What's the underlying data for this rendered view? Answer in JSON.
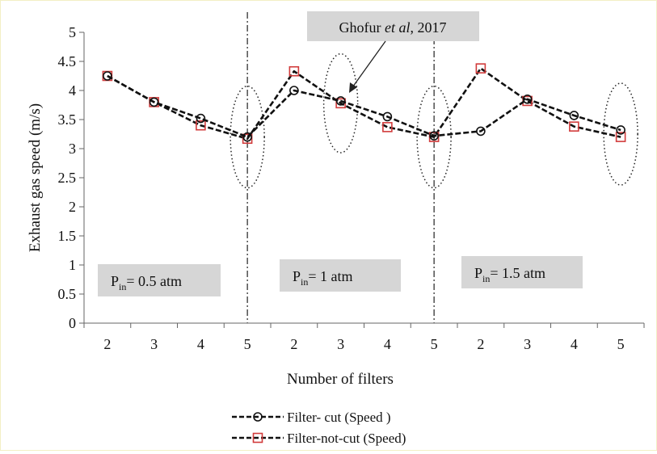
{
  "chart_data": {
    "type": "line",
    "title": "",
    "xlabel": "Number of filters",
    "ylabel": "Exhaust gas speed (m/s)",
    "ylim": [
      0,
      5
    ],
    "yticks": [
      "0",
      "0.5",
      "1",
      "1.5",
      "2",
      "2.5",
      "3",
      "3.5",
      "4",
      "4.5",
      "5"
    ],
    "categories": [
      "2",
      "3",
      "4",
      "5",
      "2",
      "3",
      "4",
      "5",
      "2",
      "3",
      "4",
      "5"
    ],
    "series": [
      {
        "name": "Filter- cut (Speed )",
        "marker": "circle",
        "color": "#111111",
        "values": [
          4.25,
          3.8,
          3.52,
          3.2,
          4.0,
          3.82,
          3.55,
          3.22,
          3.3,
          3.85,
          3.57,
          3.32
        ]
      },
      {
        "name": "Filter-not-cut (Speed)",
        "marker": "square",
        "color": "#111111",
        "marker_color": "#d13b3b",
        "values": [
          4.25,
          3.8,
          3.4,
          3.17,
          4.33,
          3.78,
          3.37,
          3.2,
          4.38,
          3.82,
          3.38,
          3.2
        ]
      }
    ],
    "region_boxes": [
      {
        "main": "P",
        "sub": "in",
        "rest": "= 0.5 atm"
      },
      {
        "main": "P",
        "sub": "in",
        "rest": "= 1 atm"
      },
      {
        "main": "P",
        "sub": "in",
        "rest": "= 1.5 atm"
      }
    ],
    "annotation": {
      "prefix": "Ghofur ",
      "italic": "et al",
      "suffix": ", 2017"
    },
    "grid": false,
    "legend_position": "bottom-center",
    "colors": {
      "box_fill": "#d6d6d6",
      "marker_red": "#d13b3b",
      "frame_border": "#f3efc4"
    }
  }
}
